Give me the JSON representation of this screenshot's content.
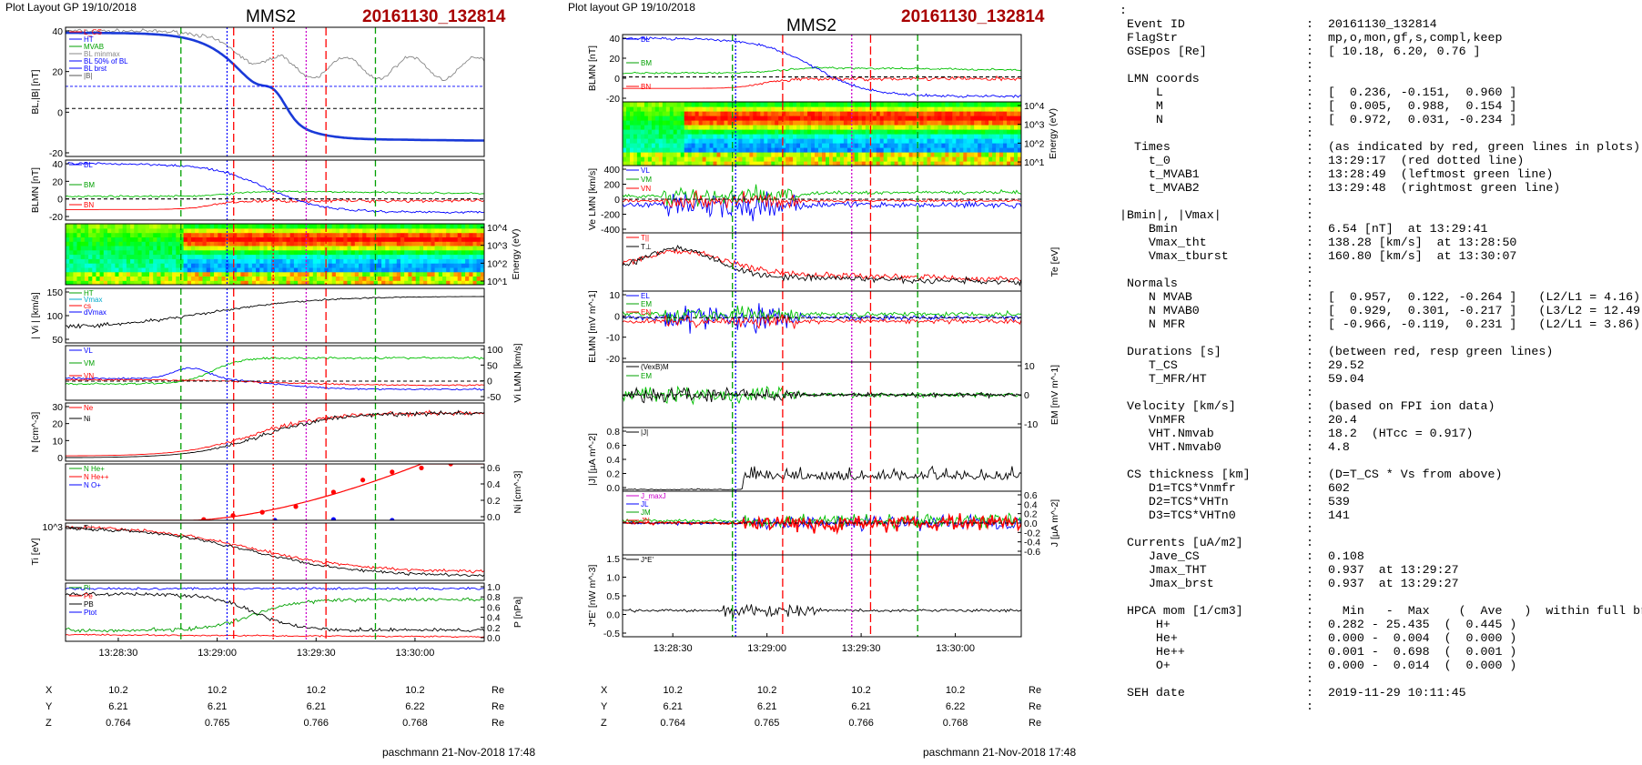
{
  "header": {
    "left_title": "Plot Layout GP 19/10/2018",
    "mid_title": "Plot layout GP 19/10/2018",
    "spacecraft": "MMS2",
    "event_id": "20161130_132814"
  },
  "footer": {
    "credit": "paschmann 21-Nov-2018 17:48"
  },
  "orbit": {
    "rows": [
      {
        "label": "X",
        "values": [
          "10.2",
          "10.2",
          "10.2",
          "10.2"
        ],
        "unit": "Re"
      },
      {
        "label": "Y",
        "values": [
          "6.21",
          "6.21",
          "6.21",
          "6.22"
        ],
        "unit": "Re"
      },
      {
        "label": "Z",
        "values": [
          "0.764",
          "0.765",
          "0.766",
          "0.768"
        ],
        "unit": "Re"
      }
    ]
  },
  "chart_data": [
    {
      "type": "line",
      "id": "left-column",
      "time_ticks": [
        "13:28:30",
        "13:29:00",
        "13:29:30",
        "13:30:00"
      ],
      "event_lines": [
        {
          "name": "t_MVAB1",
          "time": "13:28:49",
          "color": "#00a000",
          "style": "dashed"
        },
        {
          "name": "t_0",
          "time": "13:29:17",
          "color": "#ff0000",
          "style": "dotted"
        },
        {
          "name": "t_MVAB2",
          "time": "13:29:48",
          "color": "#00a000",
          "style": "dashed"
        }
      ],
      "panels": [
        {
          "ylabel": "BL,|B| [nT]",
          "yticks": [
            "40",
            "20",
            "0",
            "-20"
          ],
          "legend": [
            "L_CS",
            "HT",
            "MVAB",
            "BL minmax",
            "BL 50% of BL",
            "BL brst",
            "|B|"
          ]
        },
        {
          "ylabel": "BLMN [nT]",
          "yticks": [
            "40",
            "20",
            "0",
            "-20"
          ],
          "legend": [
            "BL",
            "BM",
            "BN"
          ]
        },
        {
          "ylabel": "Energy (eV)",
          "yticks": [
            "10^4",
            "10^3",
            "10^2",
            "10^1"
          ],
          "type": "heatmap"
        },
        {
          "ylabel": "| Vi | [km/s]",
          "yticks": [
            "150",
            "100",
            "50"
          ],
          "legend": [
            "HT",
            "Vmax",
            "cs",
            "dVmax"
          ]
        },
        {
          "ylabel": "Vi LMN [km/s]",
          "yticks": [
            "100",
            "50",
            "0",
            "-50"
          ],
          "legend": [
            "VL",
            "VM",
            "VN"
          ]
        },
        {
          "ylabel": "N [cm^-3]",
          "yticks": [
            "30",
            "20",
            "10",
            "0"
          ],
          "legend": [
            "Ne",
            "Ni"
          ]
        },
        {
          "ylabel": "Ni [cm^-3]",
          "yticks": [
            "0.6",
            "0.4",
            "0.2",
            "0.0"
          ],
          "legend": [
            "N He+",
            "N He++",
            "N O+"
          ]
        },
        {
          "ylabel": "Ti [eV]",
          "yticks": [
            "10^3"
          ],
          "legend": [
            "T⊥"
          ]
        },
        {
          "ylabel": "P [nPa]",
          "yticks": [
            "1.0",
            "0.8",
            "0.6",
            "0.4",
            "0.2",
            "0.0"
          ],
          "legend": [
            "Pi",
            "Pe",
            "PB",
            "Ptot"
          ]
        }
      ]
    },
    {
      "type": "line",
      "id": "middle-column",
      "time_ticks": [
        "13:28:30",
        "13:29:00",
        "13:29:30",
        "13:30:00"
      ],
      "panels": [
        {
          "ylabel": "BLMN [nT]",
          "yticks": [
            "40",
            "20",
            "0",
            "-20"
          ],
          "legend": [
            "BL",
            "BM",
            "BN"
          ]
        },
        {
          "ylabel": "Energy (eV)",
          "yticks": [
            "10^4",
            "10^3",
            "10^2",
            "10^1"
          ],
          "type": "heatmap"
        },
        {
          "ylabel": "Ve LMN [km/s]",
          "yticks": [
            "400",
            "200",
            "0",
            "-200",
            "-400"
          ],
          "legend": [
            "VL",
            "VM",
            "VN"
          ]
        },
        {
          "ylabel": "Te [eV]",
          "yticks": [],
          "legend": [
            "T||",
            "T⊥"
          ]
        },
        {
          "ylabel": "ELMN [mV m^-1]",
          "yticks": [
            "10",
            "0",
            "-10",
            "-20"
          ],
          "legend": [
            "EL",
            "EM",
            "EN"
          ]
        },
        {
          "ylabel": "EM [mV m^-1]",
          "yticks": [
            "10",
            "0",
            "-10"
          ],
          "legend": [
            "(VexB)M",
            "EM"
          ]
        },
        {
          "ylabel": "|J| [µA m^-2]",
          "yticks": [
            "0.8",
            "0.6",
            "0.4",
            "0.2",
            "0.0"
          ],
          "legend": [
            "|J|"
          ]
        },
        {
          "ylabel": "J [µA m^-2]",
          "yticks": [
            "0.6",
            "0.4",
            "0.2",
            "0.0",
            "-0.2",
            "-0.4",
            "-0.6"
          ],
          "legend": [
            "J_maxJ",
            "JL",
            "JM",
            "JN"
          ]
        },
        {
          "ylabel": "J*E' [nW m^-3]",
          "yticks": [
            "1.5",
            "1.0",
            "0.5",
            "0.0",
            "-0.5"
          ],
          "legend": [
            "J*E'"
          ]
        }
      ]
    }
  ],
  "summary": {
    "lines": [
      {
        "k": ":",
        "c": "",
        "v": ""
      },
      {
        "k": " Event ID",
        "c": ":",
        "v": "20161130_132814"
      },
      {
        "k": " FlagStr",
        "c": ":",
        "v": "mp,o,mon,gf,s,compl,keep"
      },
      {
        "k": " GSEpos [Re]",
        "c": ":",
        "v": "[ 10.18, 6.20, 0.76 ]"
      },
      {
        "k": "",
        "c": ":",
        "v": ""
      },
      {
        "k": " LMN coords",
        "c": ":",
        "v": ""
      },
      {
        "k": "     L",
        "c": ":",
        "v": "[  0.236, -0.151,  0.960 ]"
      },
      {
        "k": "     M",
        "c": ":",
        "v": "[  0.005,  0.988,  0.154 ]"
      },
      {
        "k": "     N",
        "c": ":",
        "v": "[  0.972,  0.031, -0.234 ]"
      },
      {
        "k": "",
        "c": ":",
        "v": ""
      },
      {
        "k": "  Times",
        "c": ":",
        "v": "(as indicated by red, green lines in plots)"
      },
      {
        "k": "    t_0",
        "c": ":",
        "v": "13:29:17  (red dotted line)"
      },
      {
        "k": "    t_MVAB1",
        "c": ":",
        "v": "13:28:49  (leftmost green line)"
      },
      {
        "k": "    t_MVAB2",
        "c": ":",
        "v": "13:29:48  (rightmost green line)"
      },
      {
        "k": "",
        "c": ":",
        "v": ""
      },
      {
        "k": "|Bmin|, |Vmax|",
        "c": ":",
        "v": ""
      },
      {
        "k": "    Bmin",
        "c": ":",
        "v": "6.54 [nT]  at 13:29:41"
      },
      {
        "k": "    Vmax_tht",
        "c": ":",
        "v": "138.28 [km/s]  at 13:28:50"
      },
      {
        "k": "    Vmax_tburst",
        "c": ":",
        "v": "160.80 [km/s]  at 13:30:07"
      },
      {
        "k": "",
        "c": ":",
        "v": ""
      },
      {
        "k": " Normals",
        "c": ":",
        "v": ""
      },
      {
        "k": "    N MVAB",
        "c": ":",
        "v": "[  0.957,  0.122, -0.264 ]   (L2/L1 = 4.16)"
      },
      {
        "k": "    N MVAB0",
        "c": ":",
        "v": "[  0.929,  0.301, -0.217 ]   (L3/L2 = 12.49)"
      },
      {
        "k": "    N MFR",
        "c": ":",
        "v": "[ -0.966, -0.119,  0.231 ]   (L2/L1 = 3.86)"
      },
      {
        "k": "",
        "c": ":",
        "v": ""
      },
      {
        "k": " Durations [s]",
        "c": ":",
        "v": "(between red, resp green lines)"
      },
      {
        "k": "    T_CS",
        "c": ":",
        "v": "29.52"
      },
      {
        "k": "    T_MFR/HT",
        "c": ":",
        "v": "59.04"
      },
      {
        "k": "",
        "c": ":",
        "v": ""
      },
      {
        "k": " Velocity [km/s]",
        "c": ":",
        "v": "(based on FPI ion data)"
      },
      {
        "k": "    VnMFR",
        "c": ":",
        "v": "20.4"
      },
      {
        "k": "    VHT.Nmvab",
        "c": ":",
        "v": "18.2  (HTcc = 0.917)"
      },
      {
        "k": "    VHT.Nmvab0",
        "c": ":",
        "v": "4.8"
      },
      {
        "k": "",
        "c": ":",
        "v": ""
      },
      {
        "k": " CS thickness [km]",
        "c": ":",
        "v": "(D=T_CS * Vs from above)"
      },
      {
        "k": "    D1=TCS*Vnmfr",
        "c": ":",
        "v": "602"
      },
      {
        "k": "    D2=TCS*VHTn",
        "c": ":",
        "v": "539"
      },
      {
        "k": "    D3=TCS*VHTn0",
        "c": ":",
        "v": "141"
      },
      {
        "k": "",
        "c": ":",
        "v": ""
      },
      {
        "k": " Currents [uA/m2]",
        "c": ":",
        "v": ""
      },
      {
        "k": "    Jave_CS",
        "c": ":",
        "v": "0.108"
      },
      {
        "k": "    Jmax_THT",
        "c": ":",
        "v": "0.937  at 13:29:27"
      },
      {
        "k": "    Jmax_brst",
        "c": ":",
        "v": "0.937  at 13:29:27"
      },
      {
        "k": "",
        "c": ":",
        "v": ""
      },
      {
        "k": " HPCA mom [1/cm3]",
        "c": ":",
        "v": "  Min   -  Max    (  Ave   )  within full brst int"
      },
      {
        "k": "     H+",
        "c": ":",
        "v": "0.282 - 25.435  (  0.445 )"
      },
      {
        "k": "     He+",
        "c": ":",
        "v": "0.000 -  0.004  (  0.000 )"
      },
      {
        "k": "     He++",
        "c": ":",
        "v": "0.001 -  0.698  (  0.001 )"
      },
      {
        "k": "     O+",
        "c": ":",
        "v": "0.000 -  0.014  (  0.000 )"
      },
      {
        "k": "",
        "c": ":",
        "v": ""
      },
      {
        "k": " SEH date",
        "c": ":",
        "v": "2019-11-29 10:11:45"
      },
      {
        "k": "",
        "c": ":",
        "v": ""
      }
    ]
  }
}
